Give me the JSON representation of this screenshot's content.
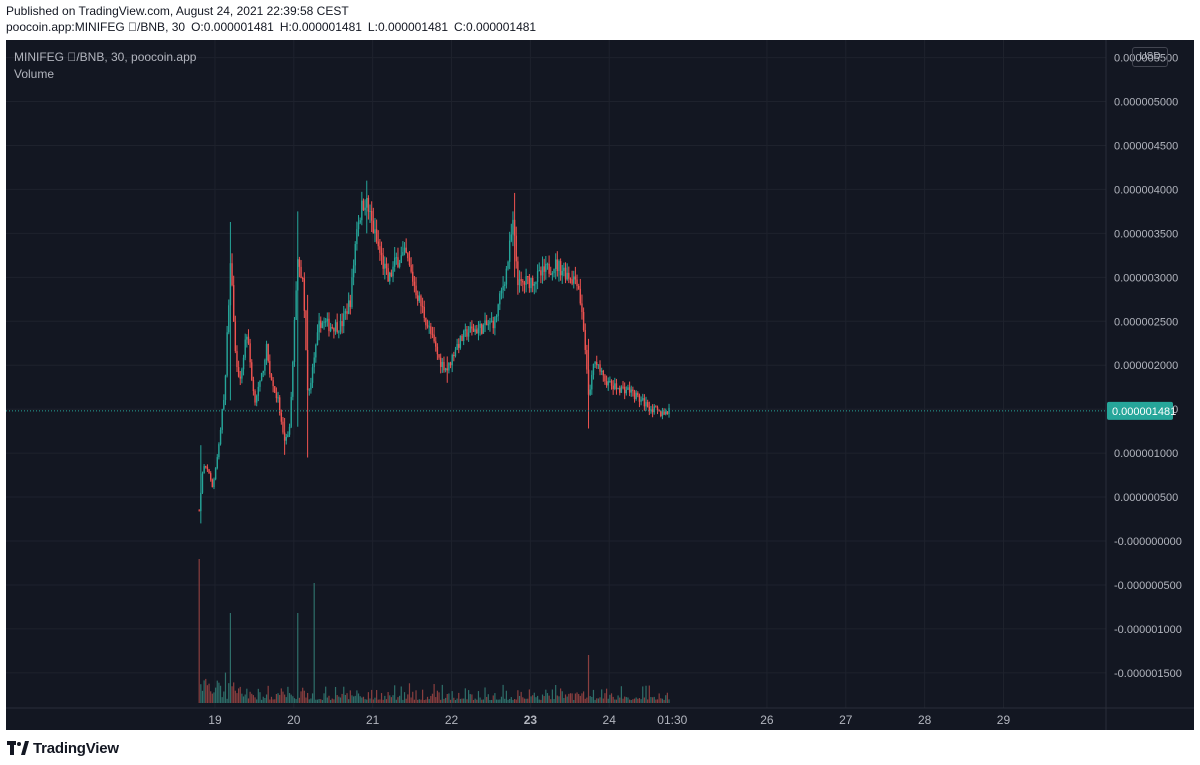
{
  "header": {
    "published": "Published on TradingView.com, August 24, 2021 22:39:58 CEST",
    "symbol_line": "poocoin.app:MINIFEG ⃝/BNB, 30",
    "ohlc": {
      "o_label": "O:",
      "o_value": "0.000001481",
      "h_label": "H:",
      "h_value": "0.000001481",
      "l_label": "L:",
      "l_value": "0.000001481",
      "c_label": "C:",
      "c_value": "0.000001481"
    }
  },
  "legend": {
    "symbol": "MINIFEG ⃝/BNB, 30, poocoin.app",
    "volume": "Volume"
  },
  "currency_button": "USD",
  "footer": {
    "brand": "TradingView"
  },
  "colors": {
    "background": "#131722",
    "grid": "#1e222d",
    "up": "#26a69a",
    "down": "#ef5350",
    "up_volume": "#2f6f6a",
    "down_volume": "#8a3f3f",
    "axis_text": "#b2b5be",
    "last_price_label": "#26a69a"
  },
  "chart_data": {
    "type": "candlestick",
    "title": "",
    "price_axis": {
      "ticks": [
        "0.000005500",
        "0.000005000",
        "0.000004500",
        "0.000004000",
        "0.000003500",
        "0.000003000",
        "0.000002500",
        "0.000002000",
        "0.000001500",
        "0.000001000",
        "0.000000500",
        "-0.000000000",
        "-0.000000500",
        "-0.000001000",
        "-0.000001500"
      ],
      "range": [
        -1.9e-06,
        5.7e-06
      ],
      "last_price": 1.481e-06,
      "last_price_label": "0.000001481"
    },
    "time_axis": {
      "labels": [
        "19",
        "20",
        "21",
        "22",
        "23",
        "24",
        "01:30",
        "26",
        "27",
        "28",
        "29"
      ],
      "label_positions_day": [
        19,
        20,
        21,
        22,
        23,
        24,
        24.8,
        26,
        27,
        28,
        29
      ],
      "range_day": [
        16.35,
        30.3
      ]
    },
    "bar_interval_minutes": 30,
    "key_points": [
      {
        "day": 18.8,
        "price": 3.5e-07,
        "volume": 0.48
      },
      {
        "day": 18.85,
        "price": 8.5e-07
      },
      {
        "day": 18.92,
        "price": 8e-07
      },
      {
        "day": 18.97,
        "price": 6e-07
      },
      {
        "day": 19.05,
        "price": 1.1e-06
      },
      {
        "day": 19.13,
        "price": 1.8e-06
      },
      {
        "day": 19.2,
        "price": 3.3e-06,
        "volume": 0.3
      },
      {
        "day": 19.25,
        "price": 2.2e-06
      },
      {
        "day": 19.32,
        "price": 1.8e-06
      },
      {
        "day": 19.4,
        "price": 2.4e-06
      },
      {
        "day": 19.5,
        "price": 1.6e-06
      },
      {
        "day": 19.58,
        "price": 1.8e-06
      },
      {
        "day": 19.65,
        "price": 2.2e-06
      },
      {
        "day": 19.72,
        "price": 1.8e-06
      },
      {
        "day": 19.8,
        "price": 1.6e-06
      },
      {
        "day": 19.88,
        "price": 1.1e-06
      },
      {
        "day": 19.95,
        "price": 1.3e-06
      },
      {
        "day": 20.05,
        "price": 3.3e-06,
        "volume": 0.3
      },
      {
        "day": 20.12,
        "price": 2.9e-06
      },
      {
        "day": 20.18,
        "price": 1.6e-06
      },
      {
        "day": 20.25,
        "price": 2e-06,
        "volume": 0.4
      },
      {
        "day": 20.33,
        "price": 2.5e-06
      },
      {
        "day": 20.45,
        "price": 2.45e-06
      },
      {
        "day": 20.6,
        "price": 2.45e-06
      },
      {
        "day": 20.72,
        "price": 2.75e-06
      },
      {
        "day": 20.8,
        "price": 3.6e-06
      },
      {
        "day": 20.9,
        "price": 3.9e-06
      },
      {
        "day": 20.95,
        "price": 3.75e-06
      },
      {
        "day": 21.05,
        "price": 3.4e-06
      },
      {
        "day": 21.2,
        "price": 2.95e-06
      },
      {
        "day": 21.3,
        "price": 3.2e-06
      },
      {
        "day": 21.42,
        "price": 3.25e-06
      },
      {
        "day": 21.55,
        "price": 2.85e-06
      },
      {
        "day": 21.7,
        "price": 2.45e-06
      },
      {
        "day": 21.85,
        "price": 2.05e-06
      },
      {
        "day": 21.95,
        "price": 1.95e-06
      },
      {
        "day": 22.05,
        "price": 2.2e-06
      },
      {
        "day": 22.2,
        "price": 2.38e-06
      },
      {
        "day": 22.4,
        "price": 2.43e-06
      },
      {
        "day": 22.55,
        "price": 2.5e-06
      },
      {
        "day": 22.7,
        "price": 3.1e-06
      },
      {
        "day": 22.78,
        "price": 3.6e-06
      },
      {
        "day": 22.85,
        "price": 2.9e-06
      },
      {
        "day": 22.95,
        "price": 2.95e-06
      },
      {
        "day": 23.1,
        "price": 3e-06
      },
      {
        "day": 23.3,
        "price": 3.15e-06
      },
      {
        "day": 23.4,
        "price": 3.1e-06
      },
      {
        "day": 23.52,
        "price": 3e-06
      },
      {
        "day": 23.6,
        "price": 2.98e-06
      },
      {
        "day": 23.68,
        "price": 2.4e-06
      },
      {
        "day": 23.74,
        "price": 1.6e-06,
        "volume": 0.16
      },
      {
        "day": 23.82,
        "price": 2.1e-06
      },
      {
        "day": 23.92,
        "price": 1.85e-06
      },
      {
        "day": 24.05,
        "price": 1.75e-06
      },
      {
        "day": 24.25,
        "price": 1.72e-06
      },
      {
        "day": 24.4,
        "price": 1.6e-06
      },
      {
        "day": 24.55,
        "price": 1.5e-06
      },
      {
        "day": 24.65,
        "price": 1.45e-06
      },
      {
        "day": 24.77,
        "price": 1.48e-06
      }
    ],
    "wick_extremes": [
      {
        "day": 18.82,
        "high": 1.09e-06,
        "low": 2e-07
      },
      {
        "day": 19.2,
        "high": 3.63e-06,
        "low": 1.6e-06
      },
      {
        "day": 19.88,
        "high": 1.4e-06,
        "low": 9.8e-07
      },
      {
        "day": 20.05,
        "high": 3.75e-06,
        "low": 1.3e-06
      },
      {
        "day": 20.18,
        "high": 2.8e-06,
        "low": 9.5e-07
      },
      {
        "day": 20.92,
        "high": 4.1e-06,
        "low": 3.5e-06
      },
      {
        "day": 21.95,
        "high": 2.1e-06,
        "low": 1.8e-06
      },
      {
        "day": 22.8,
        "high": 3.96e-06,
        "low": 3e-06
      },
      {
        "day": 23.74,
        "high": 2.3e-06,
        "low": 1.28e-06
      }
    ]
  }
}
